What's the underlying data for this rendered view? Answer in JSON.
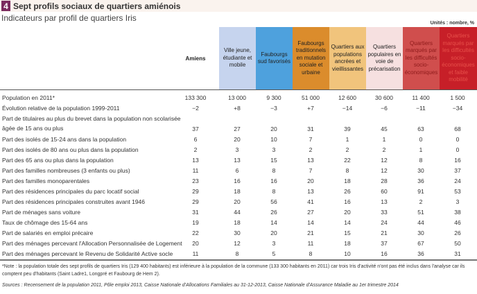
{
  "title": {
    "number": "4",
    "text": "Sept profils sociaux de quartiers amiénois"
  },
  "subtitle": "Indicateurs par profil de quartiers Iris",
  "units": "Unités : nombre, %",
  "columns": [
    {
      "label": "Amiens"
    },
    {
      "label": "Ville jeune, étudiante et mobile",
      "color": "#c6d4ee",
      "text_color": "#222"
    },
    {
      "label": "Faubourgs sud favorisés",
      "color": "#4ea1dd",
      "text_color": "#222"
    },
    {
      "label": "Faubourgs traditionnels en mutation sociale et urbaine",
      "color": "#db8c2c",
      "text_color": "#222"
    },
    {
      "label": "Quartiers aux populations ancrées et vieillissantes",
      "color": "#f1c47c",
      "text_color": "#222"
    },
    {
      "label": "Quartiers populaires en voie de précarisation",
      "color": "#f6e0e0",
      "text_color": "#222"
    },
    {
      "label": "Quartiers marqués par les difficultés socio-économiques",
      "color": "#d04e4d",
      "text_color": "#8e1a1a"
    },
    {
      "label": "Quartiers marqués par les difficultés socio-économiques et faible mobilité",
      "color": "#c71f28",
      "text_color": "#e8504a"
    }
  ],
  "rows": [
    {
      "label": "Population en 2011*",
      "values": [
        "133 300",
        "13 000",
        "9 300",
        "51 000",
        "12 600",
        "30 600",
        "11 400",
        "1 500"
      ]
    },
    {
      "label": "Évolution relative de la population 1999-2011",
      "values": [
        "−2",
        "+8",
        "−3",
        "+7",
        "−14",
        "−6",
        "−11",
        "−34"
      ]
    },
    {
      "label": "Part de titulaires au plus du brevet dans la population non scolarisée âgée de 15 ans ou plus",
      "values": [
        "37",
        "27",
        "20",
        "31",
        "39",
        "45",
        "63",
        "68"
      ]
    },
    {
      "label": "Part des isolés de 15-24 ans dans la population",
      "values": [
        "6",
        "20",
        "10",
        "7",
        "1",
        "1",
        "0",
        "0"
      ]
    },
    {
      "label": "Part des isolés de 80 ans ou plus dans la population",
      "values": [
        "2",
        "3",
        "3",
        "2",
        "2",
        "2",
        "1",
        "0"
      ]
    },
    {
      "label": "Part des 65 ans ou plus dans la population",
      "values": [
        "13",
        "13",
        "15",
        "13",
        "22",
        "12",
        "8",
        "16"
      ]
    },
    {
      "label": "Part des familles nombreuses (3 enfants ou plus)",
      "values": [
        "11",
        "6",
        "8",
        "7",
        "8",
        "12",
        "30",
        "37"
      ]
    },
    {
      "label": "Part des familles monoparentales",
      "values": [
        "23",
        "16",
        "16",
        "20",
        "18",
        "28",
        "36",
        "24"
      ]
    },
    {
      "label": "Part des résidences principales du parc locatif social",
      "values": [
        "29",
        "18",
        "8",
        "13",
        "26",
        "60",
        "91",
        "53"
      ]
    },
    {
      "label": "Part des résidences principales construites avant 1946",
      "values": [
        "29",
        "20",
        "56",
        "41",
        "16",
        "13",
        "2",
        "3"
      ]
    },
    {
      "label": "Part de ménages sans voiture",
      "values": [
        "31",
        "44",
        "26",
        "27",
        "20",
        "33",
        "51",
        "38"
      ]
    },
    {
      "label": "Taux de chômage des 15-64 ans",
      "values": [
        "19",
        "18",
        "14",
        "14",
        "14",
        "24",
        "44",
        "46"
      ]
    },
    {
      "label": "Part de salariés en emploi précaire",
      "values": [
        "22",
        "30",
        "20",
        "21",
        "15",
        "21",
        "30",
        "26"
      ]
    },
    {
      "label": "Part des ménages percevant l'Allocation Personnalisée de Logement",
      "values": [
        "20",
        "12",
        "3",
        "11",
        "18",
        "37",
        "67",
        "50"
      ]
    },
    {
      "label": "Part des ménages percevant le Revenu de Solidarité Active socle",
      "values": [
        "11",
        "8",
        "5",
        "8",
        "10",
        "16",
        "36",
        "31"
      ]
    }
  ],
  "note": "*Note : la population totale des sept profils de quartiers Iris (129 400 habitants) est inférieure à la population de la commune (133 300 habitants en 2011) car trois Iris d'activité n'ont pas été inclus dans l'analyse car ils comptent peu d'habitants (Saint Ladre1, Longpré et Faubourg de Hem 2).",
  "sources": "Sources : Recensement de la population 2011, Pôle emploi 2013, Caisse Nationale d'Allocations Familiales au 31-12-2013, Caisse Nationale d'Assurance Maladie au 1er trimestre 2014"
}
